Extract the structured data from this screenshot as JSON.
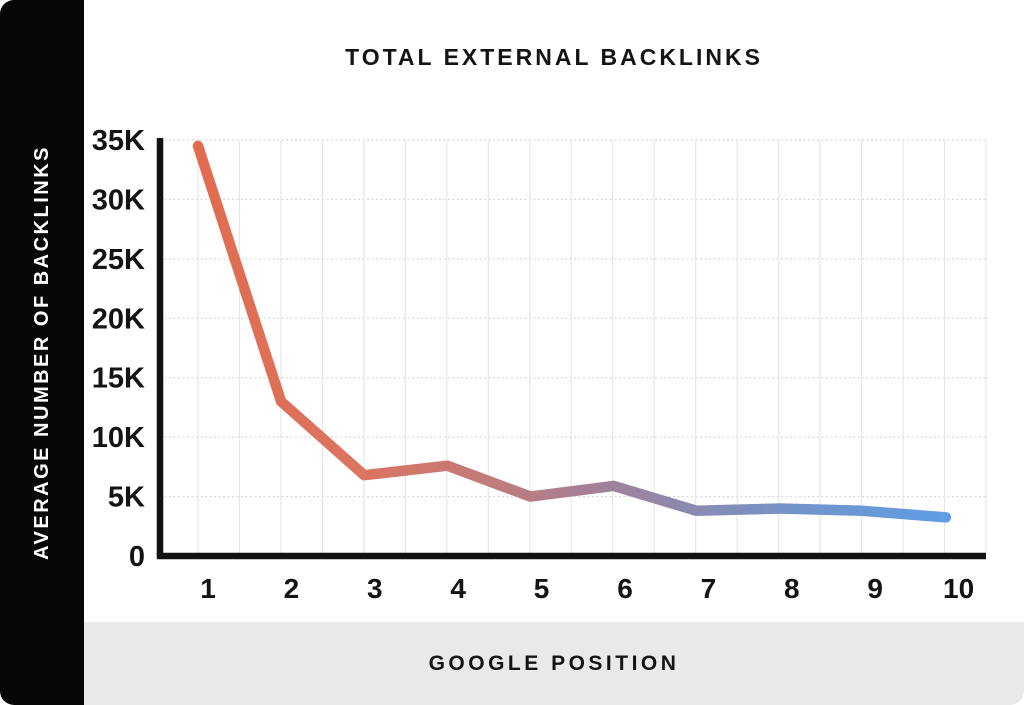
{
  "title": "TOTAL EXTERNAL BACKLINKS",
  "sidebar": {
    "label": "AVERAGE NUMBER OF BACKLINKS"
  },
  "footer": {
    "label": "GOOGLE POSITION"
  },
  "colors": {
    "sidebar_bg": "#070707",
    "footer_bg": "#e9e9e9",
    "text": "#141414",
    "axis": "#121212",
    "grid_horizontal": "#d8d8d8",
    "grid_vertical": "#e6e6e6",
    "line_start": "#E26C4F",
    "line_end": "#5F9DE4"
  },
  "chart_data": {
    "type": "line",
    "title": "TOTAL EXTERNAL BACKLINKS",
    "xlabel": "GOOGLE POSITION",
    "ylabel": "AVERAGE NUMBER OF BACKLINKS",
    "x": [
      1,
      2,
      3,
      4,
      5,
      6,
      7,
      8,
      9,
      10
    ],
    "values": [
      34500,
      13000,
      6800,
      7600,
      5000,
      5900,
      3800,
      4000,
      3800,
      3250
    ],
    "x_tick_labels": [
      "1",
      "2",
      "3",
      "4",
      "5",
      "6",
      "7",
      "8",
      "9",
      "10"
    ],
    "y_ticks": [
      0,
      5000,
      10000,
      15000,
      20000,
      25000,
      30000,
      35000
    ],
    "y_tick_labels": [
      "0",
      "5K",
      "10K",
      "15K",
      "20K",
      "25K",
      "30K",
      "35K"
    ],
    "ylim": [
      0,
      35000
    ],
    "grid": true,
    "legend": false,
    "gradient_stops": [
      {
        "offset": "0%",
        "color": "#E26C4F"
      },
      {
        "offset": "22%",
        "color": "#DB7462"
      },
      {
        "offset": "38%",
        "color": "#C37B79"
      },
      {
        "offset": "52%",
        "color": "#A67F94"
      },
      {
        "offset": "66%",
        "color": "#8A8AB0"
      },
      {
        "offset": "82%",
        "color": "#7095CD"
      },
      {
        "offset": "100%",
        "color": "#5F9DE4"
      }
    ]
  }
}
